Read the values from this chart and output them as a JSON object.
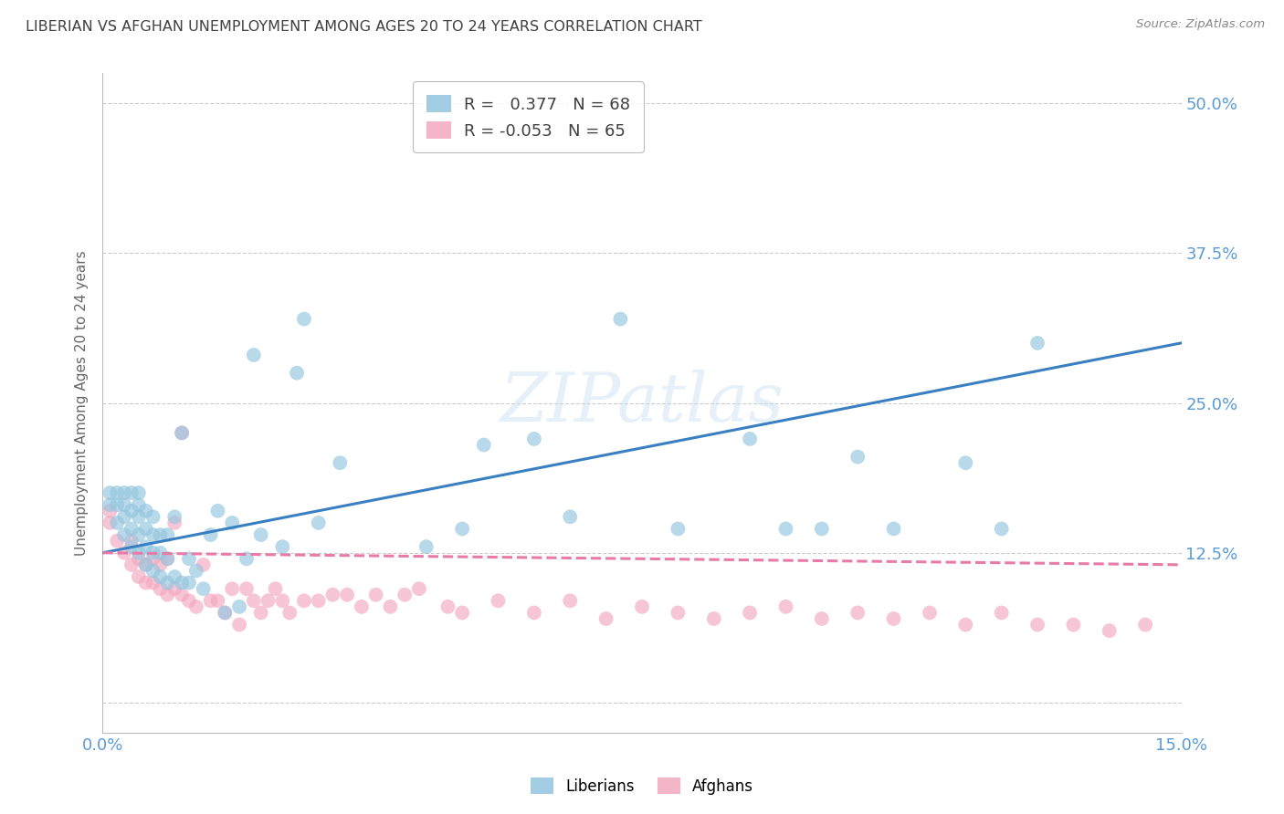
{
  "title": "LIBERIAN VS AFGHAN UNEMPLOYMENT AMONG AGES 20 TO 24 YEARS CORRELATION CHART",
  "source": "Source: ZipAtlas.com",
  "ylabel": "Unemployment Among Ages 20 to 24 years",
  "xlim": [
    0.0,
    0.15
  ],
  "ylim": [
    -0.025,
    0.525
  ],
  "xticks": [
    0.0,
    0.05,
    0.1,
    0.15
  ],
  "xticklabels": [
    "0.0%",
    "",
    "",
    "15.0%"
  ],
  "yticks": [
    0.0,
    0.125,
    0.25,
    0.375,
    0.5
  ],
  "yticklabels": [
    "",
    "12.5%",
    "25.0%",
    "37.5%",
    "50.0%"
  ],
  "liberian_R": "0.377",
  "liberian_N": 68,
  "afghan_R": "-0.053",
  "afghan_N": 65,
  "blue_scatter_color": "#92c5de",
  "pink_scatter_color": "#f4a8c0",
  "blue_line_color": "#3a7fc1",
  "pink_line_color": "#e87aaa",
  "tick_label_color": "#5b9bd5",
  "title_color": "#404040",
  "grid_color": "#cccccc",
  "background_color": "#ffffff",
  "watermark": "ZIPatlas",
  "blue_line_x0": 0.0,
  "blue_line_y0": 0.125,
  "blue_line_x1": 0.15,
  "blue_line_y1": 0.3,
  "pink_line_x0": 0.0,
  "pink_line_y0": 0.125,
  "pink_line_x1": 0.15,
  "pink_line_y1": 0.115,
  "liberian_x": [
    0.001,
    0.001,
    0.002,
    0.002,
    0.002,
    0.003,
    0.003,
    0.003,
    0.003,
    0.004,
    0.004,
    0.004,
    0.004,
    0.005,
    0.005,
    0.005,
    0.005,
    0.005,
    0.006,
    0.006,
    0.006,
    0.006,
    0.007,
    0.007,
    0.007,
    0.007,
    0.008,
    0.008,
    0.008,
    0.009,
    0.009,
    0.009,
    0.01,
    0.01,
    0.011,
    0.011,
    0.012,
    0.012,
    0.013,
    0.014,
    0.015,
    0.016,
    0.017,
    0.018,
    0.019,
    0.02,
    0.021,
    0.022,
    0.025,
    0.027,
    0.028,
    0.03,
    0.033,
    0.045,
    0.05,
    0.053,
    0.06,
    0.065,
    0.072,
    0.08,
    0.09,
    0.095,
    0.1,
    0.105,
    0.11,
    0.12,
    0.125,
    0.13
  ],
  "liberian_y": [
    0.165,
    0.175,
    0.15,
    0.165,
    0.175,
    0.14,
    0.155,
    0.165,
    0.175,
    0.13,
    0.145,
    0.16,
    0.175,
    0.125,
    0.14,
    0.155,
    0.165,
    0.175,
    0.115,
    0.13,
    0.145,
    0.16,
    0.11,
    0.125,
    0.14,
    0.155,
    0.105,
    0.125,
    0.14,
    0.1,
    0.12,
    0.14,
    0.105,
    0.155,
    0.1,
    0.225,
    0.1,
    0.12,
    0.11,
    0.095,
    0.14,
    0.16,
    0.075,
    0.15,
    0.08,
    0.12,
    0.29,
    0.14,
    0.13,
    0.275,
    0.32,
    0.15,
    0.2,
    0.13,
    0.145,
    0.215,
    0.22,
    0.155,
    0.32,
    0.145,
    0.22,
    0.145,
    0.145,
    0.205,
    0.145,
    0.2,
    0.145,
    0.3
  ],
  "afghan_x": [
    0.001,
    0.001,
    0.002,
    0.003,
    0.004,
    0.004,
    0.005,
    0.005,
    0.006,
    0.006,
    0.007,
    0.007,
    0.008,
    0.008,
    0.009,
    0.009,
    0.01,
    0.01,
    0.011,
    0.011,
    0.012,
    0.013,
    0.014,
    0.015,
    0.016,
    0.017,
    0.018,
    0.019,
    0.02,
    0.021,
    0.022,
    0.023,
    0.024,
    0.025,
    0.026,
    0.028,
    0.03,
    0.032,
    0.034,
    0.036,
    0.038,
    0.04,
    0.042,
    0.044,
    0.048,
    0.05,
    0.055,
    0.06,
    0.065,
    0.07,
    0.075,
    0.08,
    0.085,
    0.09,
    0.095,
    0.1,
    0.105,
    0.11,
    0.115,
    0.12,
    0.125,
    0.13,
    0.135,
    0.14,
    0.145
  ],
  "afghan_y": [
    0.15,
    0.16,
    0.135,
    0.125,
    0.115,
    0.135,
    0.105,
    0.12,
    0.1,
    0.115,
    0.1,
    0.12,
    0.095,
    0.115,
    0.09,
    0.12,
    0.095,
    0.15,
    0.09,
    0.225,
    0.085,
    0.08,
    0.115,
    0.085,
    0.085,
    0.075,
    0.095,
    0.065,
    0.095,
    0.085,
    0.075,
    0.085,
    0.095,
    0.085,
    0.075,
    0.085,
    0.085,
    0.09,
    0.09,
    0.08,
    0.09,
    0.08,
    0.09,
    0.095,
    0.08,
    0.075,
    0.085,
    0.075,
    0.085,
    0.07,
    0.08,
    0.075,
    0.07,
    0.075,
    0.08,
    0.07,
    0.075,
    0.07,
    0.075,
    0.065,
    0.075,
    0.065,
    0.065,
    0.06,
    0.065
  ]
}
